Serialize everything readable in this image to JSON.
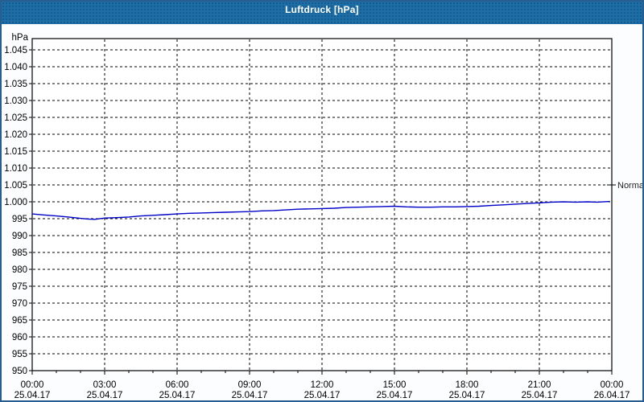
{
  "window": {
    "title": "Luftdruck [hPa]"
  },
  "colors": {
    "titlebar_bg": "#1d6ea7",
    "titlebar_text": "#ffffff",
    "window_border": "#275d8f",
    "window_bg": "#fcfdff",
    "plot_bg": "#ffffff",
    "axis": "#000000",
    "grid": "#000000",
    "tick_label": "#000000",
    "line": "#0000c8",
    "normal_label_text": "#222222"
  },
  "chart_data": {
    "type": "line",
    "title": "Luftdruck [hPa]",
    "ylabel": "hPa",
    "xlabel": "",
    "ylim": [
      950,
      1045
    ],
    "ytick_step": 5,
    "grid": true,
    "legend_position": "none",
    "y_unit_label": "hPa",
    "y_ticks": [
      {
        "value": 950,
        "label": "950"
      },
      {
        "value": 955,
        "label": "955"
      },
      {
        "value": 960,
        "label": "960"
      },
      {
        "value": 965,
        "label": "965"
      },
      {
        "value": 970,
        "label": "970"
      },
      {
        "value": 975,
        "label": "975"
      },
      {
        "value": 980,
        "label": "980"
      },
      {
        "value": 985,
        "label": "985"
      },
      {
        "value": 990,
        "label": "990"
      },
      {
        "value": 995,
        "label": "995"
      },
      {
        "value": 1000,
        "label": "1.000"
      },
      {
        "value": 1005,
        "label": "1.005"
      },
      {
        "value": 1010,
        "label": "1.010"
      },
      {
        "value": 1015,
        "label": "1.015"
      },
      {
        "value": 1020,
        "label": "1.020"
      },
      {
        "value": 1025,
        "label": "1.025"
      },
      {
        "value": 1030,
        "label": "1.030"
      },
      {
        "value": 1035,
        "label": "1.035"
      },
      {
        "value": 1040,
        "label": "1.040"
      },
      {
        "value": 1045,
        "label": "1.045"
      }
    ],
    "xlim_hours": [
      0,
      24
    ],
    "x_major_step_hours": 3,
    "x_minor_step_hours": 1,
    "x_major_ticks": [
      {
        "hour": 0,
        "time": "00:00",
        "date": "25.04.17"
      },
      {
        "hour": 3,
        "time": "03:00",
        "date": "25.04.17"
      },
      {
        "hour": 6,
        "time": "06:00",
        "date": "25.04.17"
      },
      {
        "hour": 9,
        "time": "09:00",
        "date": "25.04.17"
      },
      {
        "hour": 12,
        "time": "12:00",
        "date": "25.04.17"
      },
      {
        "hour": 15,
        "time": "15:00",
        "date": "25.04.17"
      },
      {
        "hour": 18,
        "time": "18:00",
        "date": "25.04.17"
      },
      {
        "hour": 21,
        "time": "21:00",
        "date": "25.04.17"
      },
      {
        "hour": 24,
        "time": "00:00",
        "date": "26.04.17"
      }
    ],
    "normal_marker": {
      "label": "Normal",
      "value": 1005
    },
    "series": [
      {
        "name": "Luftdruck",
        "color": "#0000c8",
        "points": [
          [
            0,
            996.4
          ],
          [
            0.5,
            996.1
          ],
          [
            1,
            995.8
          ],
          [
            1.5,
            995.5
          ],
          [
            2,
            995.1
          ],
          [
            2.3,
            994.9
          ],
          [
            2.6,
            994.8
          ],
          [
            3,
            995.2
          ],
          [
            3.5,
            995.3
          ],
          [
            4,
            995.5
          ],
          [
            4.5,
            995.8
          ],
          [
            5,
            996.0
          ],
          [
            5.5,
            996.2
          ],
          [
            6,
            996.4
          ],
          [
            6.5,
            996.6
          ],
          [
            7,
            996.7
          ],
          [
            7.5,
            996.8
          ],
          [
            8,
            996.9
          ],
          [
            8.5,
            997.0
          ],
          [
            9,
            997.1
          ],
          [
            9.5,
            997.3
          ],
          [
            10,
            997.4
          ],
          [
            10.5,
            997.6
          ],
          [
            11,
            997.8
          ],
          [
            11.5,
            997.9
          ],
          [
            12,
            998.0
          ],
          [
            12.5,
            998.1
          ],
          [
            13,
            998.3
          ],
          [
            13.5,
            998.4
          ],
          [
            14,
            998.5
          ],
          [
            14.5,
            998.6
          ],
          [
            15,
            998.7
          ],
          [
            15.5,
            998.5
          ],
          [
            16,
            998.4
          ],
          [
            16.5,
            998.4
          ],
          [
            17,
            998.5
          ],
          [
            17.5,
            998.5
          ],
          [
            18,
            998.6
          ],
          [
            18.5,
            998.7
          ],
          [
            19,
            998.9
          ],
          [
            19.5,
            999.1
          ],
          [
            20,
            999.3
          ],
          [
            20.5,
            999.5
          ],
          [
            21,
            999.7
          ],
          [
            21.5,
            999.9
          ],
          [
            22,
            1000.0
          ],
          [
            22.5,
            999.9
          ],
          [
            23,
            1000.0
          ],
          [
            23.4,
            999.9
          ],
          [
            23.9,
            1000.1
          ]
        ]
      }
    ]
  }
}
